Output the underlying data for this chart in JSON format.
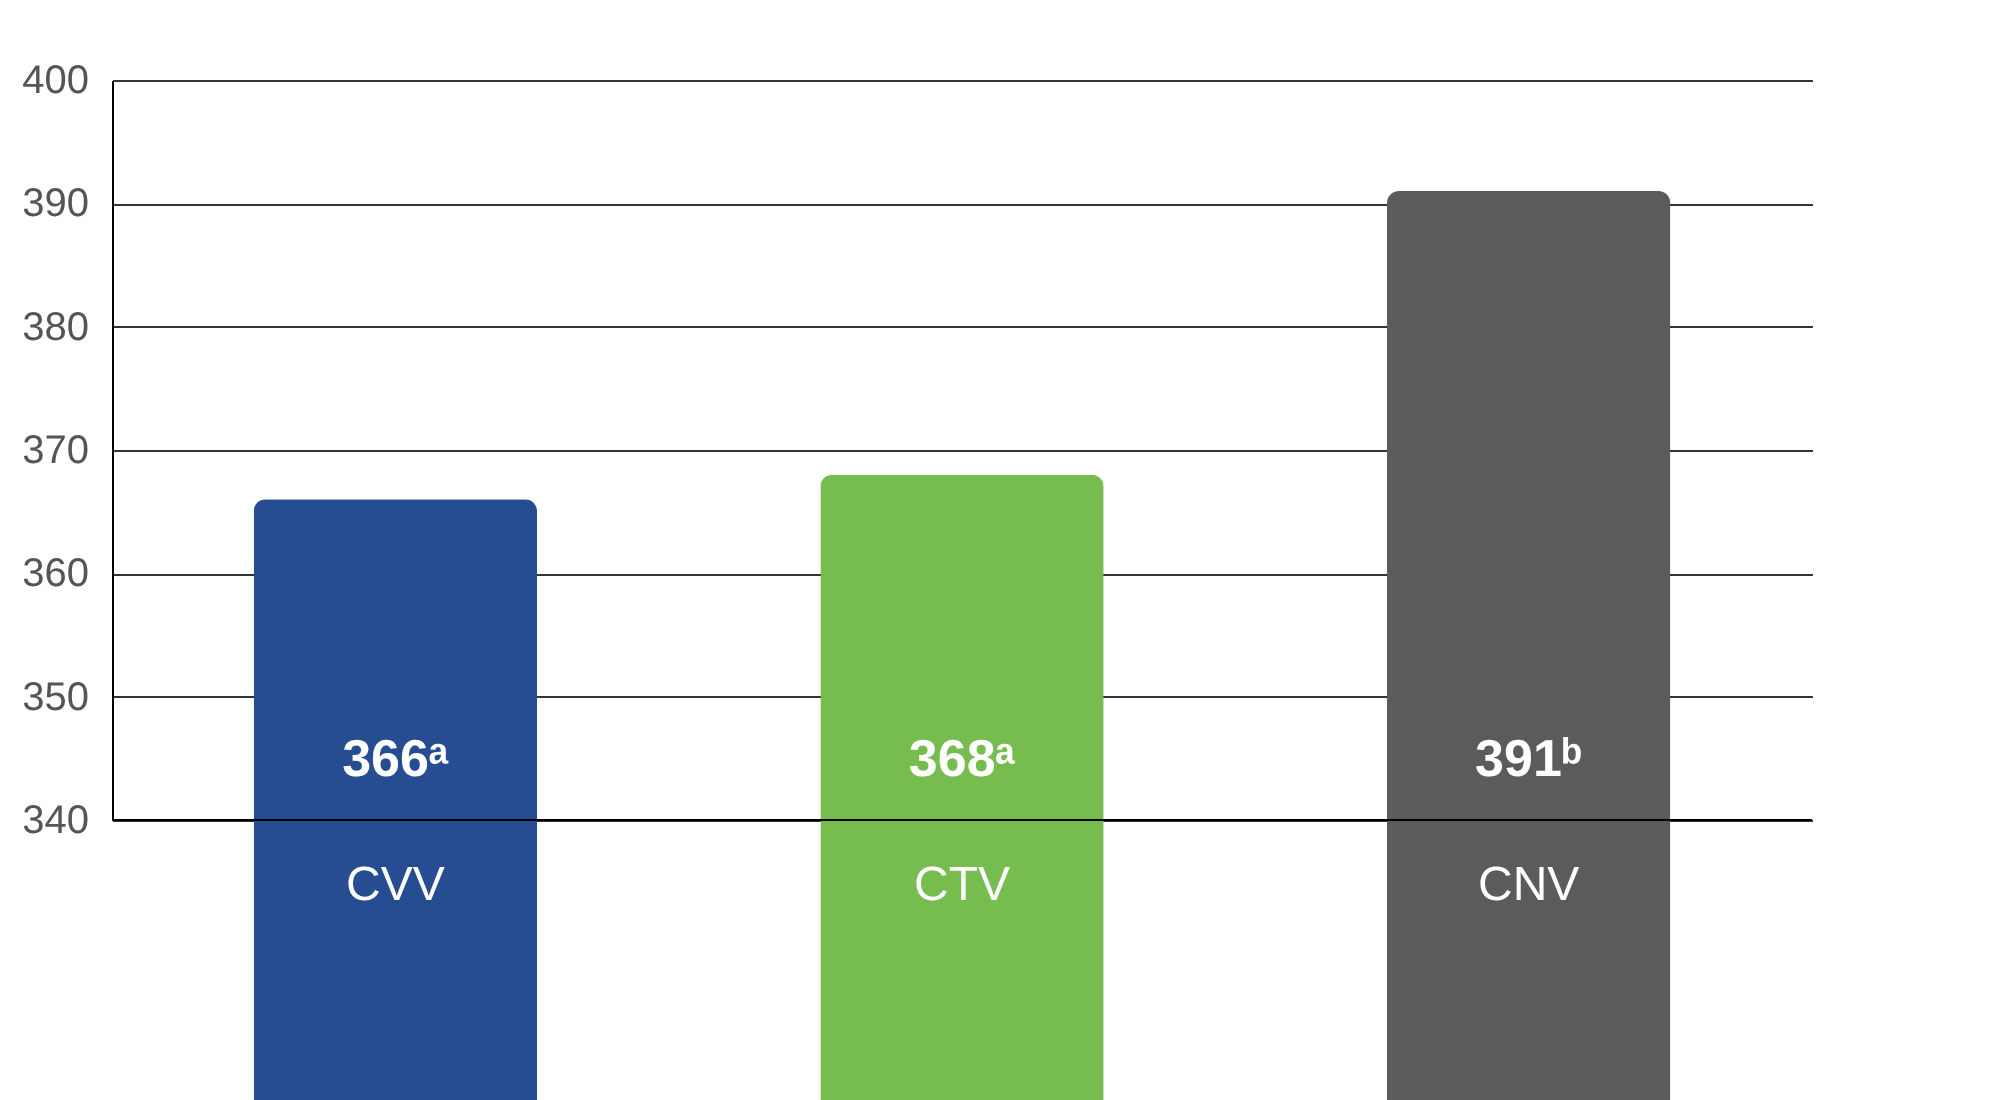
{
  "chart_data": {
    "type": "bar",
    "categories": [
      "CVV",
      "CTV",
      "CNV"
    ],
    "values": [
      366,
      368,
      391
    ],
    "colors": [
      "#264d92",
      "#77bc4e",
      "#5a5b5d"
    ],
    "value_labels": [
      "366ᵃ",
      "368ᵃ",
      "391ᵇ"
    ],
    "ylim": [
      340,
      400
    ],
    "yticks": [
      340,
      350,
      360,
      370,
      380,
      390,
      400
    ],
    "grid": "y"
  }
}
